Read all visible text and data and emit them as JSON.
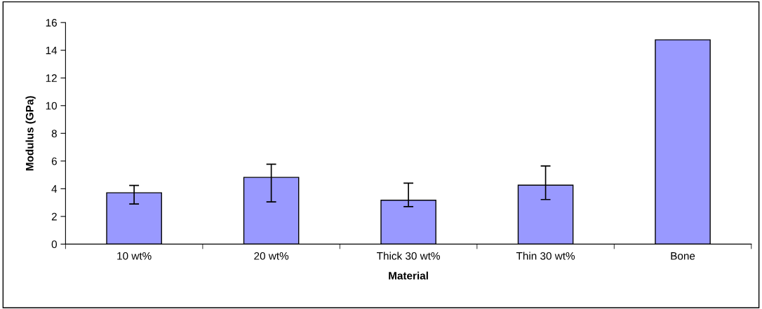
{
  "chart_data": {
    "type": "bar",
    "xlabel": "Material",
    "ylabel": "Modulus (GPa)",
    "categories": [
      "10 wt%",
      "20 wt%",
      "Thick 30 wt%",
      "Thin 30 wt%",
      "Bone"
    ],
    "values": [
      3.71,
      4.82,
      3.17,
      4.26,
      14.75
    ],
    "errors": [
      [
        2.9,
        4.24
      ],
      [
        3.05,
        5.77
      ],
      [
        2.71,
        4.4
      ],
      [
        3.22,
        5.64
      ],
      null
    ],
    "color": "#9999ff",
    "ylim": [
      0,
      16
    ],
    "yticks": [
      0,
      2,
      4,
      6,
      8,
      10,
      12,
      14,
      16
    ],
    "grid": false
  }
}
